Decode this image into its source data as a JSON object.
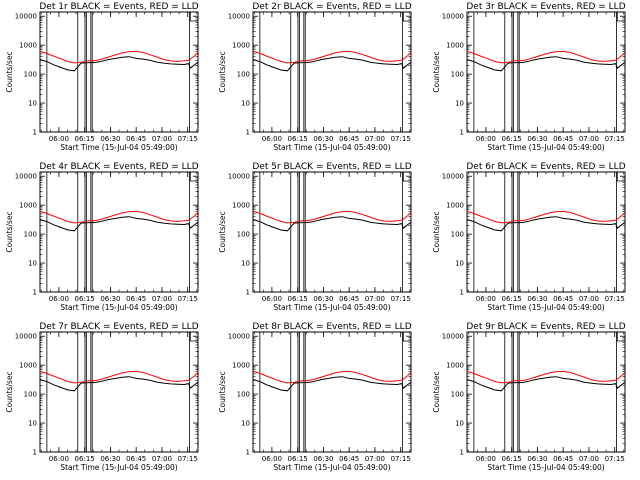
{
  "chart_data": {
    "type": "line",
    "layout": "3x3 grid of panels",
    "xlabel": "Start Time (15-Jul-04 05:49:00)",
    "ylabel": "Counts/sec",
    "x_tick_labels": [
      "06:00",
      "06:15",
      "06:30",
      "06:45",
      "07:00",
      "07:15"
    ],
    "x_tick_minutes": [
      11,
      26,
      41,
      56,
      71,
      86
    ],
    "x_range_minutes": [
      0,
      92
    ],
    "y_scale": "log",
    "y_tick_labels": [
      "1",
      "10",
      "100",
      "1000",
      "10000"
    ],
    "y_range": [
      1,
      14000
    ],
    "legend_colors": {
      "events": "#000000",
      "lld": "#ff0000"
    },
    "gap_lines_minutes": {
      "single": [
        4,
        22,
        87
      ],
      "double": [
        [
          26.2,
          27.0
        ],
        [
          29.6,
          30.4
        ]
      ]
    },
    "shared_series": {
      "x_minutes": [
        0,
        4,
        8,
        12,
        16,
        20,
        24,
        28,
        30.5,
        33,
        36,
        40,
        44,
        48,
        52,
        56,
        60,
        64,
        68,
        72,
        76,
        80,
        84,
        86.5,
        87.5,
        90,
        92
      ],
      "lld": [
        610,
        520,
        420,
        340,
        275,
        245,
        255,
        290,
        290,
        300,
        330,
        390,
        460,
        540,
        600,
        610,
        560,
        470,
        390,
        320,
        285,
        275,
        290,
        300,
        330,
        430,
        560
      ],
      "events": [
        320,
        270,
        210,
        170,
        140,
        130,
        240,
        250,
        250,
        255,
        280,
        320,
        350,
        380,
        400,
        350,
        330,
        300,
        260,
        240,
        225,
        220,
        215,
        230,
        160,
        210,
        260
      ]
    },
    "panels": [
      {
        "title": "Det 1r BLACK = Events, RED = LLD"
      },
      {
        "title": "Det 2r BLACK = Events, RED = LLD"
      },
      {
        "title": "Det 3r BLACK = Events, RED = LLD"
      },
      {
        "title": "Det 4r BLACK = Events, RED = LLD"
      },
      {
        "title": "Det 5r BLACK = Events, RED = LLD"
      },
      {
        "title": "Det 6r BLACK = Events, RED = LLD"
      },
      {
        "title": "Det 7r BLACK = Events, RED = LLD"
      },
      {
        "title": "Det 8r BLACK = Events, RED = LLD"
      },
      {
        "title": "Det 9r BLACK = Events, RED = LLD"
      }
    ]
  }
}
